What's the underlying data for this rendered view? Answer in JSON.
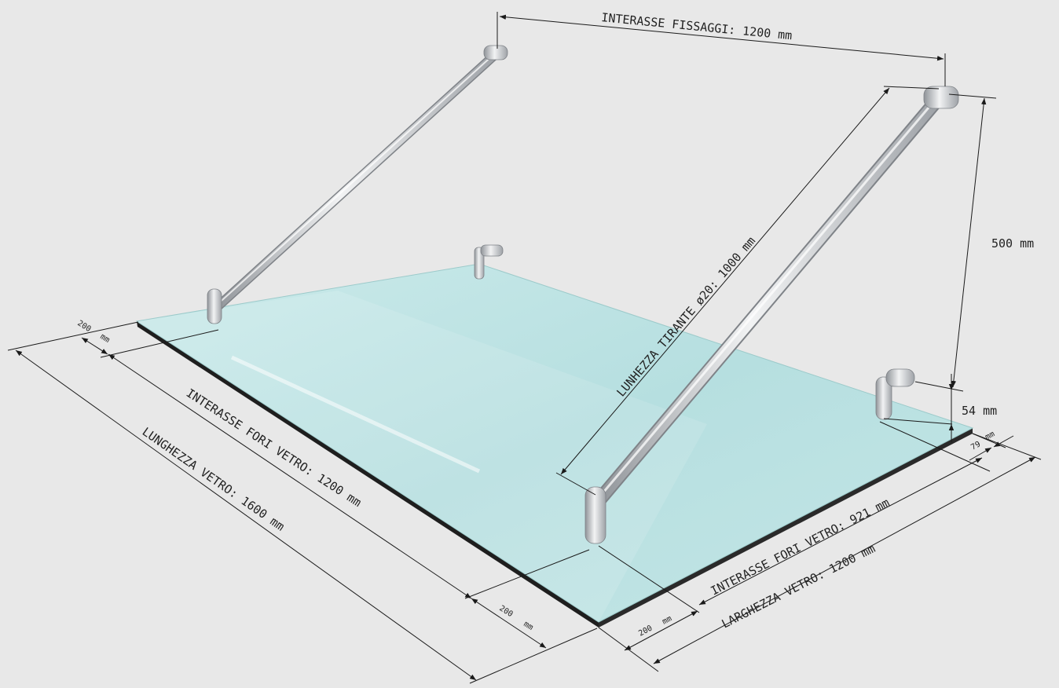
{
  "colors": {
    "background": "#e8e8e8",
    "glass": "#bfe3e3",
    "glass_edge": "#1e1e1e",
    "steel": "#c9ccd0",
    "dimension_line": "#1a1a1a"
  },
  "dimensions": {
    "interasse_fissaggi": "INTERASSE FISSAGGI: 1200 mm",
    "lunghezza_tirante": "LUNHEZZA TIRANTE ø20: 1000 mm",
    "height_500": "500 mm",
    "height_54": "54 mm",
    "edge_79_value": "79",
    "edge_79_unit": "mm",
    "interasse_fori_921": "INTERASSE FORI VETRO: 921 mm",
    "larghezza_vetro": "LARGHEZZA VETRO: 1200 mm",
    "front_200_value": "200",
    "front_200_unit": "mm",
    "left_200_top_value": "200",
    "left_200_top_unit": "mm",
    "interasse_fori_1200": "INTERASSE FORI VETRO: 1200 mm",
    "lunghezza_vetro": "LUNGHEZZA VETRO: 1600 mm",
    "left_200_bottom_value": "200",
    "left_200_bottom_unit": "mm"
  }
}
